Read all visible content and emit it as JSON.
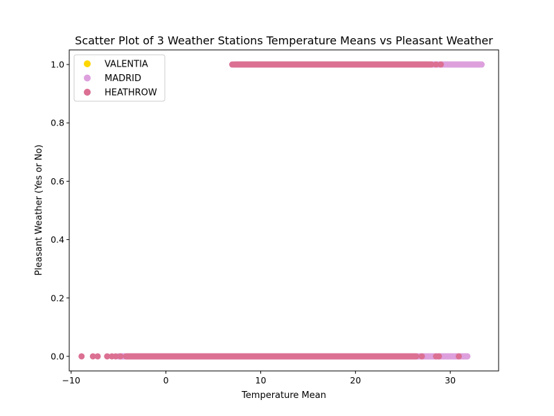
{
  "chart_data": {
    "type": "scatter",
    "title": "Scatter Plot of 3 Weather Stations Temperature Means vs Pleasant Weather",
    "xlabel": "Temperature Mean",
    "ylabel": "Pleasant Weather (Yes or No)",
    "xlim": [
      -10.2,
      35.1
    ],
    "ylim": [
      -0.05,
      1.05
    ],
    "xticks": [
      -10,
      0,
      10,
      20,
      30
    ],
    "yticks": [
      0.0,
      0.2,
      0.4,
      0.6,
      0.8,
      1.0
    ],
    "xtick_labels": [
      "−10",
      "0",
      "10",
      "20",
      "30"
    ],
    "ytick_labels": [
      "0.0",
      "0.2",
      "0.4",
      "0.6",
      "0.8",
      "1.0"
    ],
    "grid": false,
    "legend_position": "upper-left",
    "series": [
      {
        "name": "VALENTIA",
        "color": "#FFD700",
        "ranges": [
          {
            "y": 1,
            "x_min": 8.0,
            "x_max": 22.0
          },
          {
            "y": 0,
            "x_min": -4.0,
            "x_max": 20.0
          }
        ]
      },
      {
        "name": "MADRID",
        "color": "#DDA0DD",
        "ranges": [
          {
            "y": 1,
            "x_min": 9.5,
            "x_max": 33.3
          },
          {
            "y": 0,
            "x_min": -5.0,
            "x_max": 31.8
          }
        ],
        "extra_points": [
          {
            "x": 31.0,
            "y": 1
          },
          {
            "x": 31.6,
            "y": 1
          },
          {
            "x": 32.3,
            "y": 1
          },
          {
            "x": 33.3,
            "y": 1
          },
          {
            "x": 29.8,
            "y": 0
          },
          {
            "x": 30.6,
            "y": 0
          },
          {
            "x": 31.3,
            "y": 0
          },
          {
            "x": 31.8,
            "y": 0
          }
        ]
      },
      {
        "name": "HEATHROW",
        "color": "#DB7093",
        "ranges": [
          {
            "y": 1,
            "x_min": 7.2,
            "x_max": 28.0
          },
          {
            "y": 0,
            "x_min": -4.2,
            "x_max": 26.4
          }
        ],
        "extra_points": [
          {
            "x": 7.0,
            "y": 1
          },
          {
            "x": 7.4,
            "y": 1
          },
          {
            "x": 7.8,
            "y": 1
          },
          {
            "x": 28.5,
            "y": 1
          },
          {
            "x": 29.0,
            "y": 1
          },
          {
            "x": -8.9,
            "y": 0
          },
          {
            "x": -7.7,
            "y": 0
          },
          {
            "x": -7.2,
            "y": 0
          },
          {
            "x": -6.2,
            "y": 0
          },
          {
            "x": -5.7,
            "y": 0
          },
          {
            "x": -5.3,
            "y": 0
          },
          {
            "x": -4.8,
            "y": 0
          },
          {
            "x": 27.0,
            "y": 0
          },
          {
            "x": 28.5,
            "y": 0
          },
          {
            "x": 28.8,
            "y": 0
          },
          {
            "x": 30.9,
            "y": 0
          }
        ]
      }
    ]
  }
}
